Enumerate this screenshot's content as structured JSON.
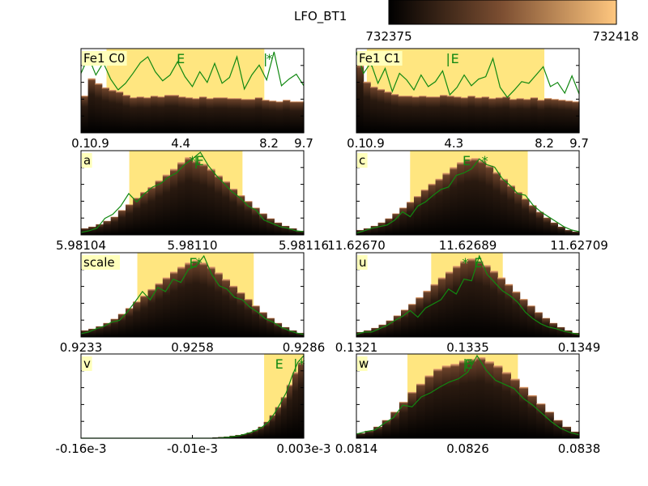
{
  "figure": {
    "colorbar": {
      "label": "LFO_BT1",
      "min_label": "732375",
      "max_label": "732418",
      "colormap": "copper"
    },
    "colors": {
      "background": "#ffffff",
      "highlight": "#ffe680",
      "line": "#118811",
      "label_box": "#ffffbb"
    }
  },
  "chart_data": [
    {
      "type": "bar",
      "title": "Fe1 C0",
      "xticks": [
        "0.1",
        "0.9",
        "4.4",
        "8.2",
        "9.7"
      ],
      "xrange": [
        0.1,
        9.7
      ],
      "bars": [
        0.45,
        0.66,
        0.6,
        0.55,
        0.52,
        0.5,
        0.46,
        0.43,
        0.44,
        0.43,
        0.45,
        0.44,
        0.46,
        0.46,
        0.44,
        0.43,
        0.42,
        0.44,
        0.42,
        0.43,
        0.43,
        0.42,
        0.42,
        0.41,
        0.41,
        0.43,
        0.4,
        0.39,
        0.38,
        0.4,
        0.38,
        0.38
      ],
      "line": [
        0.72,
        0.92,
        0.7,
        0.85,
        0.65,
        0.52,
        0.6,
        0.72,
        0.85,
        0.92,
        0.74,
        0.63,
        0.7,
        0.86,
        0.68,
        0.56,
        0.74,
        0.61,
        0.84,
        0.6,
        0.67,
        0.92,
        0.53,
        0.7,
        0.82,
        0.64,
        0.98,
        0.57,
        0.65,
        0.71,
        0.57
      ],
      "line_x": [
        0.1,
        9.7
      ],
      "highlight": [
        1.2,
        8.0
      ],
      "markers": [
        {
          "label": "E",
          "x": 4.4,
          "y": 1.05
        },
        {
          "label": "|",
          "x": 8.05,
          "y": 1.05
        },
        {
          "label": "*",
          "x": 8.22,
          "y": 1.02
        }
      ]
    },
    {
      "type": "bar",
      "title": "Fe1 C1",
      "xticks": [
        "0.1",
        "0.9",
        "4.3",
        "8.2",
        "9.7"
      ],
      "xrange": [
        0.1,
        9.7
      ],
      "bars": [
        0.82,
        0.62,
        0.56,
        0.53,
        0.5,
        0.47,
        0.45,
        0.45,
        0.44,
        0.45,
        0.44,
        0.44,
        0.46,
        0.45,
        0.44,
        0.43,
        0.45,
        0.43,
        0.44,
        0.42,
        0.43,
        0.44,
        0.41,
        0.42,
        0.41,
        0.43,
        0.4,
        0.42,
        0.41,
        0.4,
        0.39,
        0.38
      ],
      "line": [
        0.98,
        0.72,
        0.85,
        0.6,
        0.78,
        0.5,
        0.72,
        0.64,
        0.52,
        0.7,
        0.56,
        0.62,
        0.75,
        0.46,
        0.55,
        0.7,
        0.57,
        0.65,
        0.68,
        0.9,
        0.55,
        0.43,
        0.52,
        0.62,
        0.6,
        0.7,
        0.8,
        0.56,
        0.61,
        0.48,
        0.69,
        0.47
      ],
      "line_x": [
        0.1,
        9.7
      ],
      "highlight": [
        0.55,
        8.2
      ],
      "markers": [
        {
          "label": "|",
          "x": 0.75,
          "y": 1.05
        },
        {
          "label": "*",
          "x": 0.88,
          "y": 1.02
        },
        {
          "label": "|",
          "x": 4.05,
          "y": 1.05
        },
        {
          "label": "E",
          "x": 4.35,
          "y": 1.05
        }
      ]
    },
    {
      "type": "bar",
      "title": "a",
      "xticks": [
        "5.98104",
        "5.98110",
        "5.98116"
      ],
      "xrange": [
        5.98104,
        5.98116
      ],
      "bars": [
        0.08,
        0.1,
        0.13,
        0.17,
        0.22,
        0.3,
        0.37,
        0.45,
        0.52,
        0.58,
        0.66,
        0.73,
        0.8,
        0.88,
        0.94,
        0.9,
        0.86,
        0.8,
        0.72,
        0.65,
        0.56,
        0.48,
        0.41,
        0.33,
        0.26,
        0.2,
        0.15,
        0.11,
        0.08,
        0.05
      ],
      "line": [
        0.03,
        0.05,
        0.08,
        0.2,
        0.25,
        0.35,
        0.5,
        0.4,
        0.5,
        0.58,
        0.62,
        0.7,
        0.75,
        0.85,
        0.92,
        1.0,
        0.84,
        0.72,
        0.62,
        0.52,
        0.45,
        0.35,
        0.3,
        0.18,
        0.14,
        0.1,
        0.08,
        0.05,
        0.04
      ],
      "line_x": [
        5.98104,
        5.98116
      ],
      "highlight": [
        5.981066,
        5.981127
      ],
      "markers": [
        {
          "label": "*",
          "x": 5.9811,
          "y": 1.02
        },
        {
          "label": "|",
          "x": 5.981102,
          "y": 1.05
        },
        {
          "label": "E",
          "x": 5.981104,
          "y": 1.05
        }
      ]
    },
    {
      "type": "bar",
      "title": "c",
      "xticks": [
        "11.62670",
        "11.62689",
        "11.62709"
      ],
      "xrange": [
        11.6267,
        11.62709
      ],
      "bars": [
        0.06,
        0.08,
        0.11,
        0.15,
        0.2,
        0.26,
        0.33,
        0.4,
        0.47,
        0.55,
        0.62,
        0.68,
        0.75,
        0.82,
        0.88,
        0.92,
        0.93,
        0.9,
        0.84,
        0.76,
        0.68,
        0.6,
        0.52,
        0.44,
        0.36,
        0.28,
        0.21,
        0.15,
        0.1,
        0.06,
        0.04
      ],
      "line": [
        0.02,
        0.05,
        0.08,
        0.1,
        0.12,
        0.18,
        0.28,
        0.22,
        0.35,
        0.4,
        0.48,
        0.55,
        0.58,
        0.72,
        0.75,
        0.8,
        0.92,
        0.85,
        0.82,
        0.68,
        0.6,
        0.5,
        0.48,
        0.36,
        0.28,
        0.22,
        0.16,
        0.1,
        0.06,
        0.04
      ],
      "line_x": [
        11.6267,
        11.62709
      ],
      "highlight": [
        11.626794,
        11.627
      ],
      "markers": [
        {
          "label": "E",
          "x": 11.626893,
          "y": 1.05
        },
        {
          "label": "*",
          "x": 11.626925,
          "y": 1.02
        }
      ]
    },
    {
      "type": "bar",
      "title": "scale",
      "xticks": [
        "0.9233",
        "0.9258",
        "0.9286"
      ],
      "xrange": [
        0.9233,
        0.9286
      ],
      "bars": [
        0.08,
        0.1,
        0.13,
        0.17,
        0.22,
        0.28,
        0.35,
        0.43,
        0.5,
        0.58,
        0.65,
        0.72,
        0.79,
        0.85,
        0.9,
        0.93,
        0.9,
        0.85,
        0.78,
        0.7,
        0.62,
        0.54,
        0.46,
        0.38,
        0.3,
        0.23,
        0.17,
        0.12,
        0.08,
        0.05
      ],
      "line": [
        0.04,
        0.06,
        0.1,
        0.13,
        0.18,
        0.2,
        0.3,
        0.42,
        0.55,
        0.45,
        0.6,
        0.55,
        0.7,
        0.66,
        0.82,
        0.86,
        0.98,
        0.76,
        0.62,
        0.58,
        0.48,
        0.45,
        0.36,
        0.3,
        0.22,
        0.18,
        0.12,
        0.08,
        0.05,
        0.03
      ],
      "line_x": [
        0.9233,
        0.9286
      ],
      "highlight": [
        0.92464,
        0.92741
      ],
      "markers": [
        {
          "label": "E",
          "x": 0.92597,
          "y": 1.05
        },
        {
          "label": "*",
          "x": 0.92611,
          "y": 1.02
        }
      ]
    },
    {
      "type": "bar",
      "title": "u",
      "xticks": [
        "0.1321",
        "0.1335",
        "0.1349"
      ],
      "xrange": [
        0.1321,
        0.1349
      ],
      "bars": [
        0.06,
        0.08,
        0.11,
        0.15,
        0.2,
        0.26,
        0.33,
        0.4,
        0.48,
        0.56,
        0.64,
        0.72,
        0.79,
        0.86,
        0.92,
        0.95,
        0.92,
        0.87,
        0.8,
        0.72,
        0.64,
        0.55,
        0.46,
        0.38,
        0.3,
        0.23,
        0.17,
        0.12,
        0.08,
        0.05
      ],
      "line": [
        0.03,
        0.06,
        0.06,
        0.1,
        0.14,
        0.2,
        0.25,
        0.32,
        0.24,
        0.35,
        0.4,
        0.45,
        0.58,
        0.52,
        0.7,
        0.68,
        0.98,
        0.76,
        0.66,
        0.56,
        0.5,
        0.42,
        0.3,
        0.22,
        0.16,
        0.12,
        0.1,
        0.07,
        0.05,
        0.03
      ],
      "line_x": [
        0.1321,
        0.1349
      ],
      "highlight": [
        0.13304,
        0.13394
      ],
      "markers": [
        {
          "label": "*",
          "x": 0.13347,
          "y": 1.02
        },
        {
          "label": "E",
          "x": 0.13363,
          "y": 1.05
        }
      ]
    },
    {
      "type": "bar",
      "title": "v",
      "xticks": [
        "-0.16e-3",
        "-0.01e-3",
        "0.003e-3"
      ],
      "xrange": [
        -0.16,
        0.003
      ],
      "bars": [
        0,
        0,
        0,
        0,
        0,
        0,
        0,
        0,
        0,
        0,
        0,
        0,
        0,
        0,
        0,
        0,
        0,
        0,
        0,
        0,
        0,
        0,
        0.005,
        0.01,
        0.015,
        0.02,
        0.03,
        0.04,
        0.05,
        0.07,
        0.1,
        0.14,
        0.2,
        0.28,
        0.38,
        0.5,
        0.65,
        0.8,
        0.92
      ],
      "line": [
        0,
        0,
        0,
        0,
        0,
        0,
        0,
        0,
        0,
        0,
        0,
        0,
        0,
        0,
        0,
        0,
        0,
        0,
        0,
        0,
        0,
        0,
        0,
        0,
        0.005,
        0.01,
        0.02,
        0.03,
        0.05,
        0.07,
        0.1,
        0.14,
        0.2,
        0.3,
        0.42,
        0.55,
        0.75,
        0.92,
        1.0
      ],
      "line_x": [
        -0.16,
        0.003
      ],
      "highlight": [
        -0.026,
        0.003
      ],
      "markers": [
        {
          "label": "E",
          "x": -0.015,
          "y": 1.05
        },
        {
          "label": "|",
          "x": -0.003,
          "y": 1.05
        },
        {
          "label": "*",
          "x": 0.0015,
          "y": 1.02
        }
      ]
    },
    {
      "type": "bar",
      "title": "w",
      "xticks": [
        "0.0814",
        "0.0826",
        "0.0838"
      ],
      "xrange": [
        0.0814,
        0.0838
      ],
      "bars": [
        0.06,
        0.09,
        0.14,
        0.22,
        0.32,
        0.44,
        0.56,
        0.66,
        0.76,
        0.84,
        0.88,
        0.9,
        0.94,
        0.96,
        0.98,
        0.93,
        0.88,
        0.8,
        0.72,
        0.62,
        0.52,
        0.42,
        0.32,
        0.22,
        0.14,
        0.08
      ],
      "line": [
        0.05,
        0.08,
        0.1,
        0.18,
        0.25,
        0.4,
        0.38,
        0.5,
        0.55,
        0.62,
        0.68,
        0.72,
        0.8,
        1.0,
        0.82,
        0.7,
        0.65,
        0.6,
        0.48,
        0.4,
        0.3,
        0.2,
        0.12,
        0.07,
        0.04
      ],
      "line_x": [
        0.0814,
        0.0838
      ],
      "highlight": [
        0.08195,
        0.08314
      ],
      "markers": [
        {
          "label": "|",
          "x": 0.08257,
          "y": 1.05
        },
        {
          "label": "E",
          "x": 0.08261,
          "y": 1.05
        },
        {
          "label": "*",
          "x": 0.08263,
          "y": 1.02
        }
      ]
    }
  ]
}
